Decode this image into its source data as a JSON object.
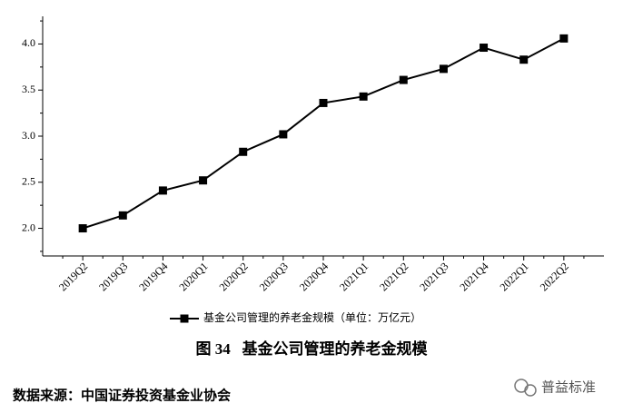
{
  "chart_data": {
    "type": "line",
    "categories": [
      "2019Q2",
      "2019Q3",
      "2019Q4",
      "2020Q1",
      "2020Q2",
      "2020Q3",
      "2020Q4",
      "2021Q1",
      "2021Q2",
      "2021Q3",
      "2021Q4",
      "2022Q1",
      "2022Q2"
    ],
    "series": [
      {
        "name": "基金公司管理的养老金规模（单位：万亿元）",
        "color": "#000000",
        "values": [
          2.0,
          2.14,
          2.41,
          2.52,
          2.83,
          3.02,
          3.36,
          3.43,
          3.61,
          3.73,
          3.96,
          3.83,
          4.06
        ]
      }
    ],
    "ylim": [
      1.7,
      4.3
    ],
    "yticks": [
      {
        "value": 2,
        "label": "2.0"
      },
      {
        "value": 2.5,
        "label": "2.5"
      },
      {
        "value": 3,
        "label": "3.0"
      },
      {
        "value": 3.5,
        "label": "3.5"
      },
      {
        "value": 4,
        "label": "4.0"
      }
    ],
    "caption": "图 34   基金公司管理的养老金规模",
    "source": "数据来源：中国证券投资基金业协会",
    "watermark": "普益标准"
  }
}
